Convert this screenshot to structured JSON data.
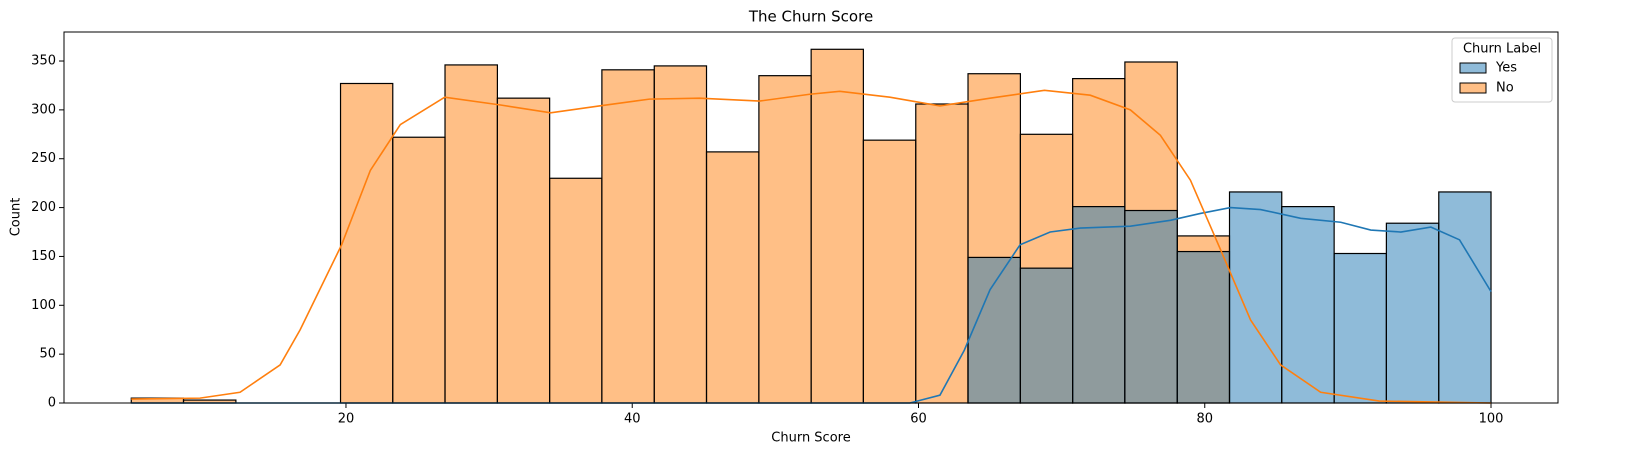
{
  "chart_data": {
    "type": "histogram",
    "title": "The Churn Score",
    "x_label": "Churn Score",
    "y_label": "Count",
    "bins": [
      5,
      8.65,
      12.31,
      15.96,
      19.62,
      23.27,
      26.92,
      30.58,
      34.23,
      37.88,
      41.54,
      45.19,
      48.85,
      52.5,
      56.15,
      59.81,
      63.46,
      67.12,
      70.77,
      74.42,
      78.08,
      81.73,
      85.38,
      89.04,
      92.69,
      96.35,
      100
    ],
    "series": [
      {
        "name": "Yes",
        "color": "#1f77b4",
        "values": [
          0,
          0,
          0,
          0,
          0,
          0,
          0,
          0,
          0,
          0,
          0,
          0,
          0,
          0,
          0,
          0,
          149,
          138,
          201,
          197,
          155,
          216,
          201,
          153,
          184,
          216
        ],
        "kde_x": [
          5,
          55,
          59.4,
          61.5,
          63.2,
          65,
          67.1,
          69.2,
          71.3,
          74.8,
          77.6,
          79.7,
          81.8,
          83.9,
          86.7,
          89.5,
          91.6,
          93.7,
          95.8,
          97.8,
          100
        ],
        "kde_values": [
          0,
          0,
          0,
          8,
          54,
          116,
          162,
          175,
          179,
          181,
          187,
          194,
          200,
          198,
          189,
          185,
          177,
          175,
          180,
          167,
          114
        ]
      },
      {
        "name": "No",
        "color": "#ff7f0e",
        "values": [
          5,
          3,
          0,
          0,
          327,
          272,
          346,
          312,
          230,
          341,
          345,
          257,
          335,
          362,
          269,
          306,
          337,
          275,
          332,
          349,
          171,
          0,
          0,
          0,
          0,
          0
        ],
        "kde_x": [
          5,
          9.8,
          12.6,
          15.4,
          16.8,
          19.7,
          21.7,
          23.8,
          26.9,
          30.8,
          34.3,
          37.7,
          41.2,
          44.7,
          48.9,
          52.4,
          54.5,
          58,
          61.5,
          65,
          68.8,
          72,
          74.8,
          76.9,
          79,
          81.1,
          83.2,
          85.3,
          88.1,
          92.2,
          100
        ],
        "kde_values": [
          4,
          5,
          11,
          39,
          75,
          162,
          238,
          285,
          313,
          305,
          297,
          304,
          311,
          312,
          309,
          316,
          319,
          313,
          304,
          312,
          320,
          315,
          300,
          274,
          228,
          157,
          85,
          39,
          11,
          2,
          0
        ]
      }
    ],
    "legend_title": "Churn Label",
    "legend": "upper right",
    "xlim": [
      0.3,
      104.68
    ],
    "xticks": [
      20,
      40,
      60,
      80,
      100
    ],
    "ylim": [
      0,
      379.7
    ],
    "yticks": [
      0,
      50,
      100,
      150,
      200,
      250,
      300,
      350
    ],
    "bar_opacity": 0.5
  }
}
